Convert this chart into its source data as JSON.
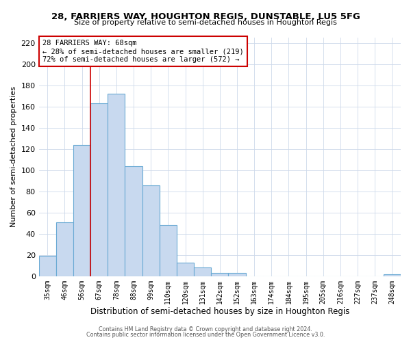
{
  "title1": "28, FARRIERS WAY, HOUGHTON REGIS, DUNSTABLE, LU5 5FG",
  "title2": "Size of property relative to semi-detached houses in Houghton Regis",
  "xlabel": "Distribution of semi-detached houses by size in Houghton Regis",
  "ylabel": "Number of semi-detached properties",
  "bins": [
    "35sqm",
    "46sqm",
    "56sqm",
    "67sqm",
    "78sqm",
    "88sqm",
    "99sqm",
    "110sqm",
    "120sqm",
    "131sqm",
    "142sqm",
    "152sqm",
    "163sqm",
    "174sqm",
    "184sqm",
    "195sqm",
    "205sqm",
    "216sqm",
    "227sqm",
    "237sqm",
    "248sqm"
  ],
  "values": [
    19,
    51,
    124,
    163,
    172,
    104,
    86,
    48,
    13,
    8,
    3,
    3,
    0,
    0,
    0,
    0,
    0,
    0,
    0,
    0,
    2
  ],
  "bar_color": "#c8d9ef",
  "bar_edge_color": "#6aaad4",
  "annotation_title": "28 FARRIERS WAY: 68sqm",
  "annotation_line1": "← 28% of semi-detached houses are smaller (219)",
  "annotation_line2": "72% of semi-detached houses are larger (572) →",
  "annotation_box_color": "#ffffff",
  "annotation_box_edge": "#cc0000",
  "vline_color": "#cc0000",
  "vline_x": 2.5,
  "ylim": [
    0,
    225
  ],
  "yticks": [
    0,
    20,
    40,
    60,
    80,
    100,
    120,
    140,
    160,
    180,
    200,
    220
  ],
  "footer1": "Contains HM Land Registry data © Crown copyright and database right 2024.",
  "footer2": "Contains public sector information licensed under the Open Government Licence v3.0.",
  "bg_color": "#ffffff",
  "grid_color": "#cdd9ea"
}
